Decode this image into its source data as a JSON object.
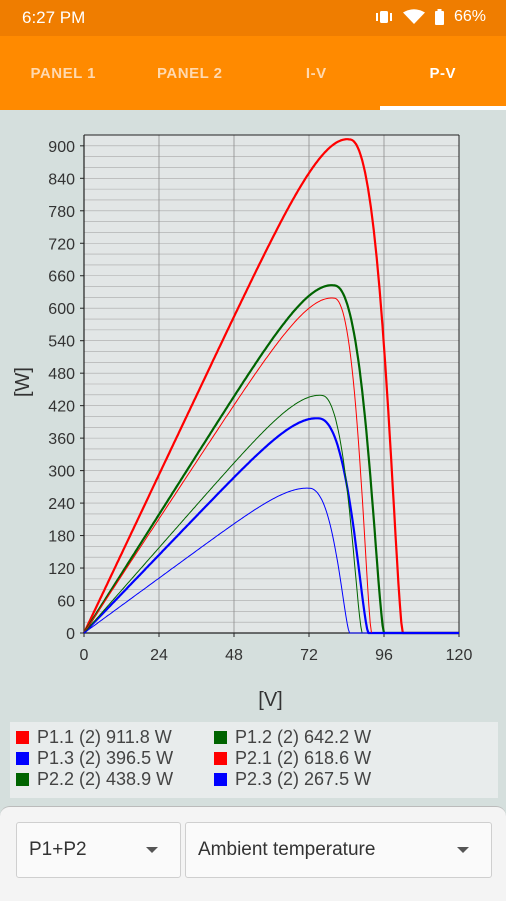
{
  "status": {
    "time": "6:27 PM",
    "battery": "66%",
    "icons": [
      "vibrate-icon",
      "wifi-icon",
      "battery-icon"
    ]
  },
  "tabs": [
    {
      "label": "PANEL 1",
      "active": false
    },
    {
      "label": "PANEL 2",
      "active": false
    },
    {
      "label": "I-V",
      "active": false
    },
    {
      "label": "P-V",
      "active": true
    }
  ],
  "chart_data": {
    "type": "line",
    "xlabel": "[V]",
    "ylabel": "[W]",
    "xlim": [
      0,
      120
    ],
    "ylim": [
      0,
      920
    ],
    "xticks": [
      0,
      24,
      48,
      72,
      96,
      120
    ],
    "yticks": [
      0,
      60,
      120,
      180,
      240,
      300,
      360,
      420,
      480,
      540,
      600,
      660,
      720,
      780,
      840,
      900
    ],
    "grid": true,
    "series": [
      {
        "name": "P1.1 (2) 911.8 W",
        "color": "#ff0000",
        "width": 2.2,
        "vmp": 85,
        "pmax": 911.8,
        "voc": 102
      },
      {
        "name": "P1.2 (2) 642.2 W",
        "color": "#006400",
        "width": 2.2,
        "vmp": 80,
        "pmax": 642.2,
        "voc": 96
      },
      {
        "name": "P1.3 (2) 396.5 W",
        "color": "#0000ff",
        "width": 2.2,
        "vmp": 75,
        "pmax": 396.5,
        "voc": 91
      },
      {
        "name": "P2.1 (2) 618.6 W",
        "color": "#ff0000",
        "width": 1,
        "vmp": 80,
        "pmax": 618.6,
        "voc": 92
      },
      {
        "name": "P2.2 (2) 438.9 W",
        "color": "#006400",
        "width": 1,
        "vmp": 76,
        "pmax": 438.9,
        "voc": 89
      },
      {
        "name": "P2.3 (2) 267.5 W",
        "color": "#0000ff",
        "width": 1,
        "vmp": 72,
        "pmax": 267.5,
        "voc": 85
      }
    ]
  },
  "legend": [
    {
      "text": "P1.1 (2) 911.8 W",
      "color": "#ff0000"
    },
    {
      "text": "P1.2 (2) 642.2 W",
      "color": "#006400"
    },
    {
      "text": "P1.3 (2) 396.5 W",
      "color": "#0000ff"
    },
    {
      "text": "P2.1 (2) 618.6 W",
      "color": "#ff0000"
    },
    {
      "text": "P2.2 (2) 438.9 W",
      "color": "#006400"
    },
    {
      "text": "P2.3 (2) 267.5 W",
      "color": "#0000ff"
    }
  ],
  "controls": {
    "panel_select": "P1+P2",
    "mode_select": "Ambient temperature"
  }
}
